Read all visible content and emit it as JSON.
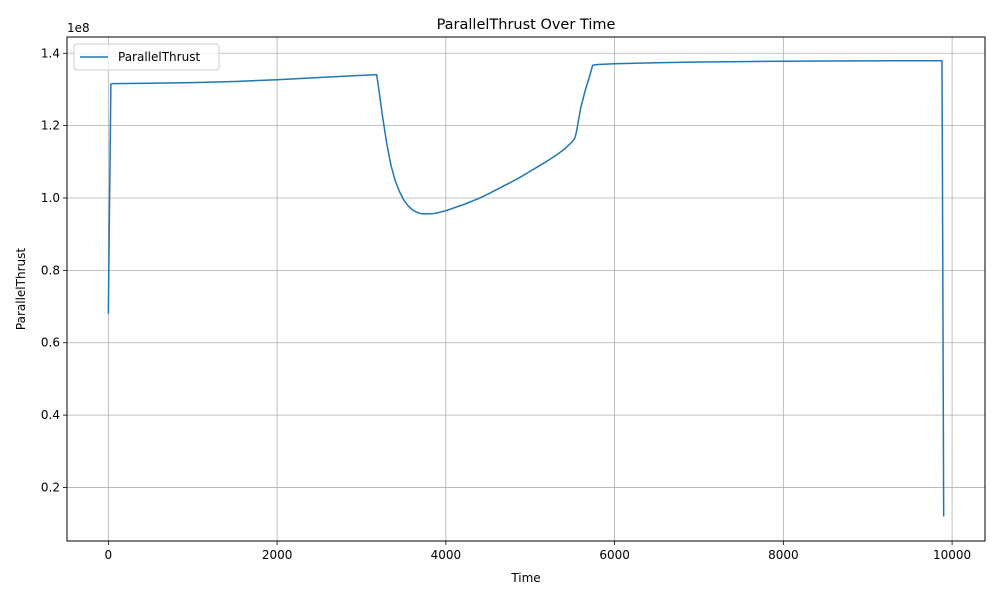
{
  "chart_data": {
    "type": "line",
    "title": "ParallelThrust Over Time",
    "xlabel": "Time",
    "ylabel": "ParallelThrust",
    "y_scale_label": "1e8",
    "xlim": [
      -490,
      10390
    ],
    "ylim": [
      5200000,
      144500000
    ],
    "x_ticks": [
      0,
      2000,
      4000,
      6000,
      8000,
      10000
    ],
    "x_tick_labels": [
      "0",
      "2000",
      "4000",
      "6000",
      "8000",
      "10000"
    ],
    "y_ticks": [
      20000000,
      40000000,
      60000000,
      80000000,
      100000000,
      120000000,
      140000000
    ],
    "y_tick_labels": [
      "0.2",
      "0.4",
      "0.6",
      "0.8",
      "1.0",
      "1.2",
      "1.4"
    ],
    "grid": true,
    "legend_position": "top-left",
    "series": [
      {
        "name": "ParallelThrust",
        "color": "#1f77b4",
        "x": [
          0,
          10,
          20,
          30,
          50,
          500,
          1000,
          1500,
          2000,
          2500,
          3000,
          3180,
          3200,
          3250,
          3300,
          3350,
          3400,
          3450,
          3500,
          3550,
          3600,
          3650,
          3700,
          3750,
          3800,
          3850,
          3900,
          4000,
          4100,
          4200,
          4300,
          4400,
          4500,
          4600,
          4700,
          4800,
          4900,
          5000,
          5100,
          5200,
          5300,
          5400,
          5500,
          5530,
          5550,
          5580,
          5600,
          5650,
          5700,
          5740,
          5800,
          6000,
          6500,
          7000,
          7500,
          8000,
          8500,
          9000,
          9500,
          9880,
          9890,
          9900
        ],
        "y": [
          68000000,
          90000000,
          110000000,
          131500000,
          131600000,
          131700000,
          131900000,
          132200000,
          132700000,
          133300000,
          133900000,
          134100000,
          131000000,
          122500000,
          115000000,
          109000000,
          104800000,
          101800000,
          99500000,
          97900000,
          96800000,
          96100000,
          95700000,
          95600000,
          95600000,
          95700000,
          95900000,
          96500000,
          97300000,
          98100000,
          99000000,
          100000000,
          101100000,
          102300000,
          103500000,
          104700000,
          106000000,
          107400000,
          108800000,
          110200000,
          111700000,
          113400000,
          115600000,
          116600000,
          118500000,
          122500000,
          125000000,
          129600000,
          133300000,
          136700000,
          136900000,
          137100000,
          137400000,
          137600000,
          137700000,
          137800000,
          137850000,
          137900000,
          137950000,
          137950000,
          80000000,
          12000000
        ]
      }
    ]
  }
}
